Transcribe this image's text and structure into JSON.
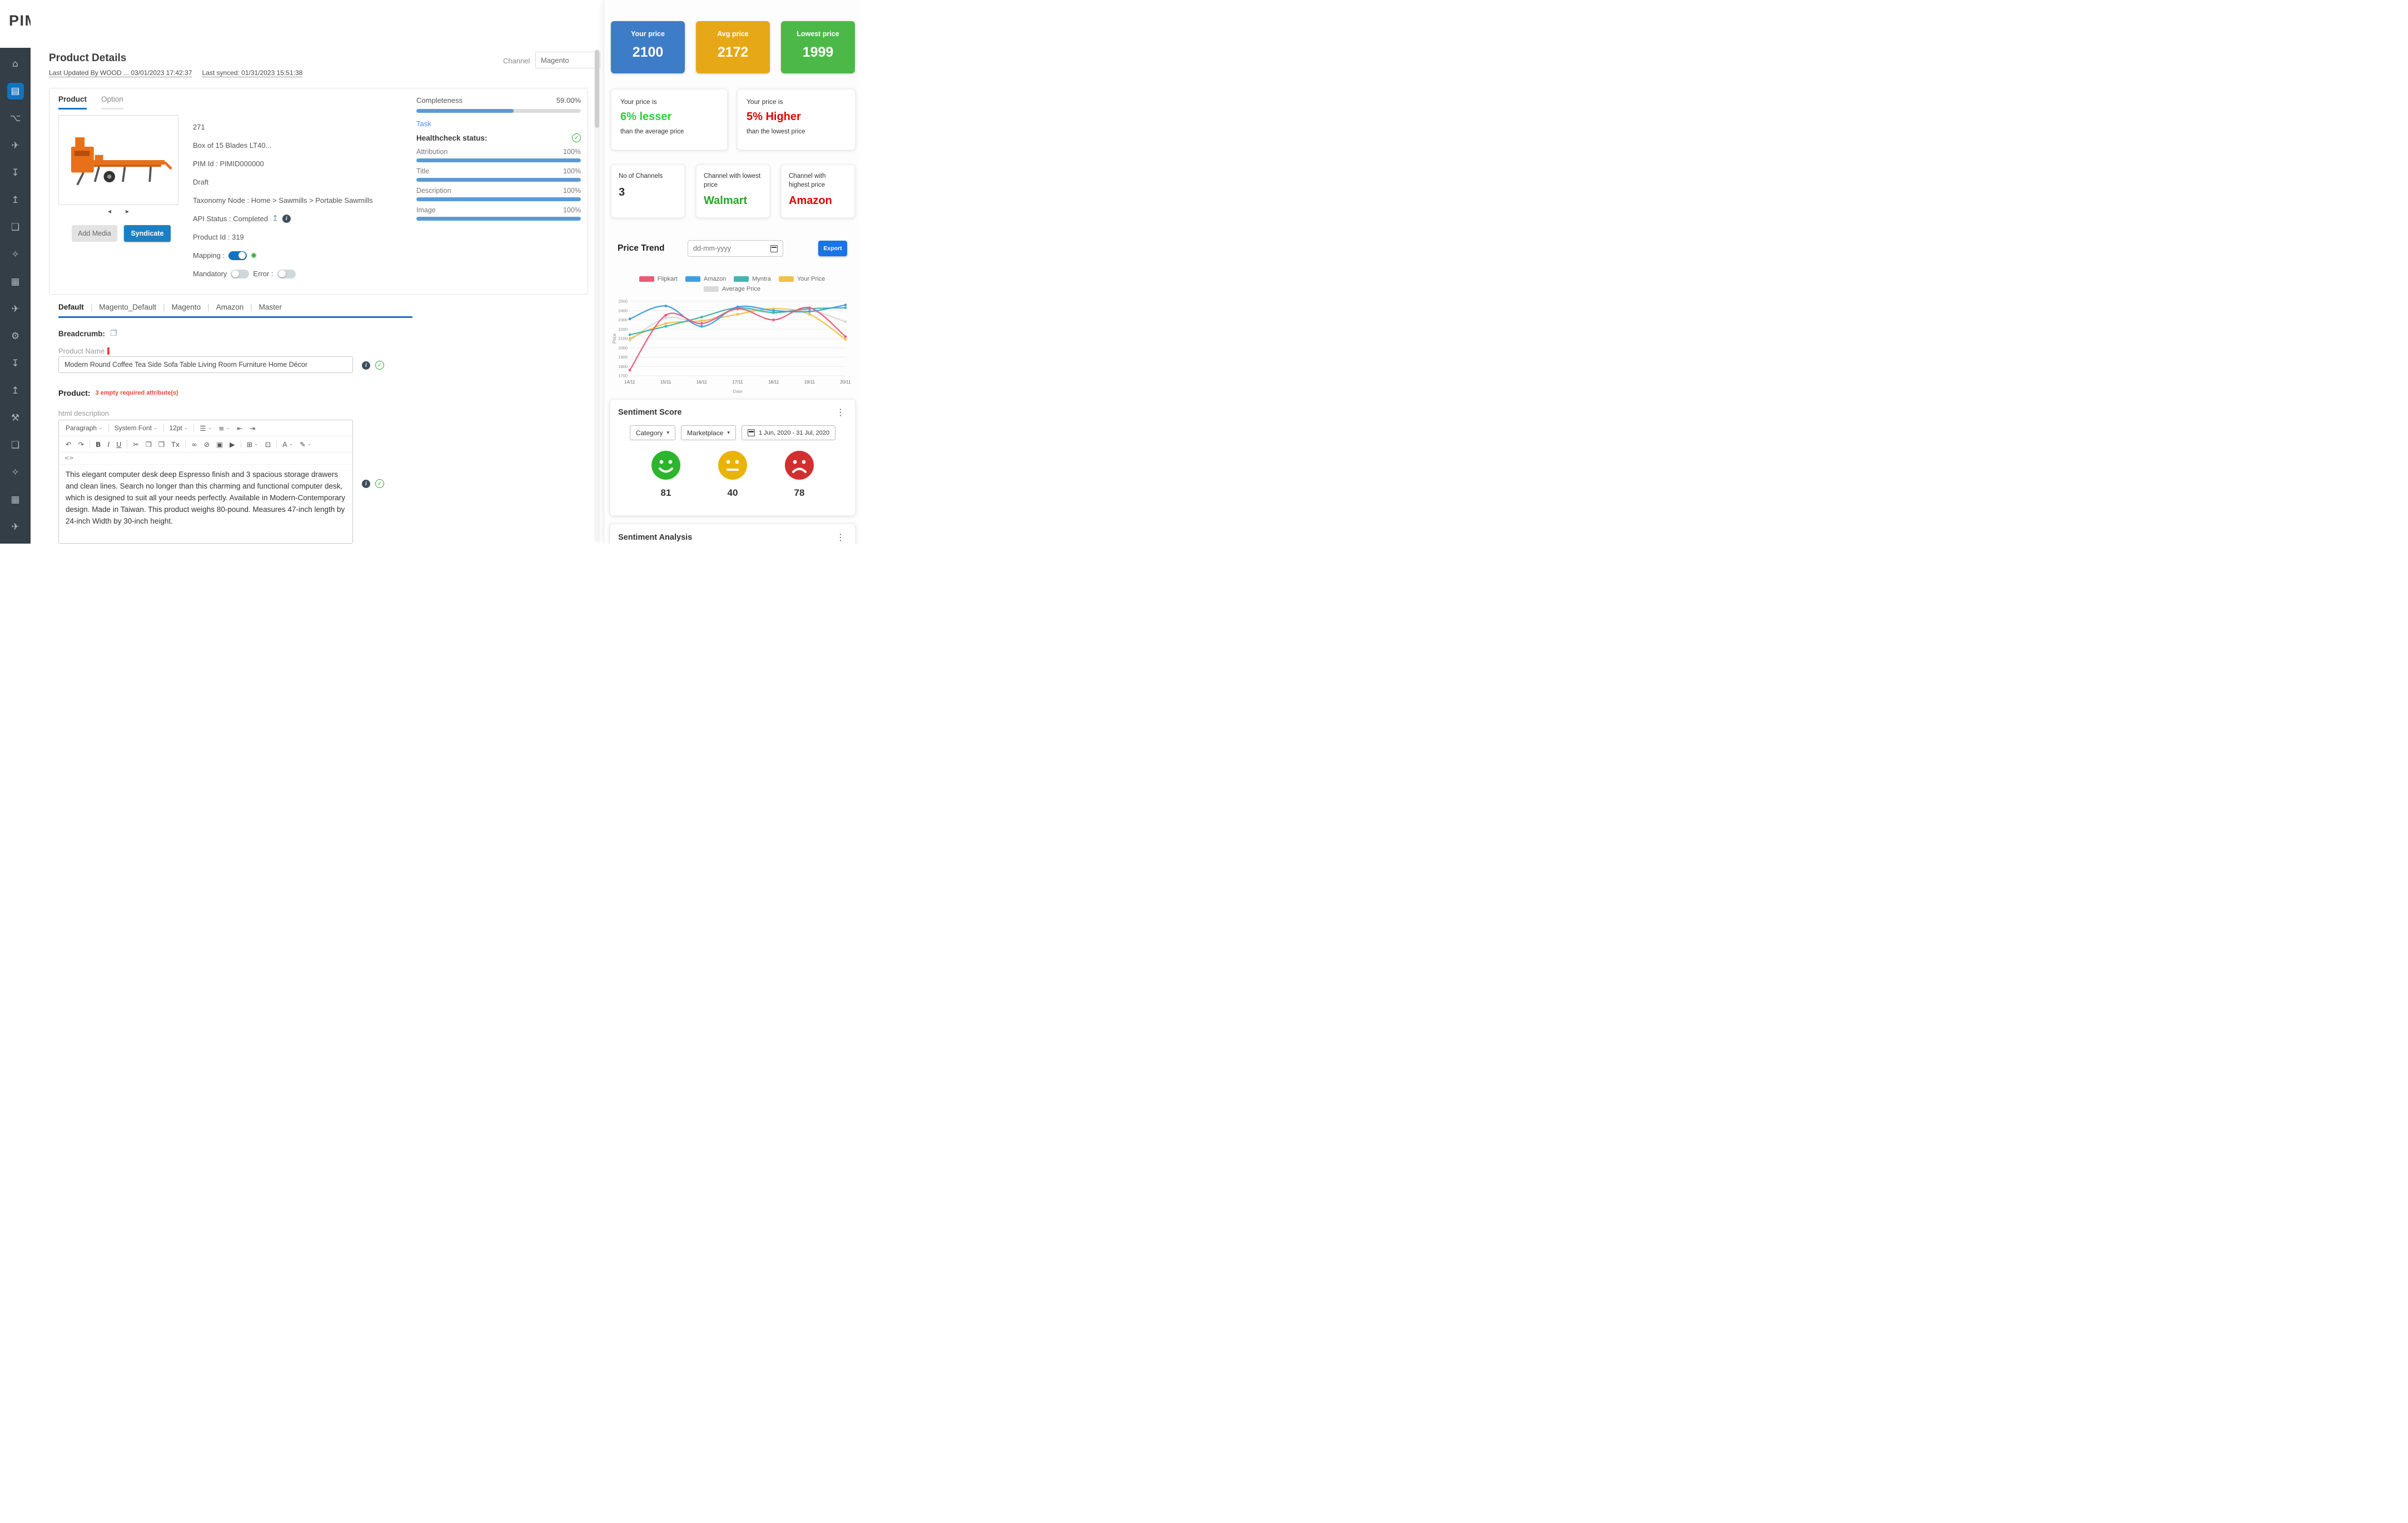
{
  "brand": {
    "prefix": "PIMW",
    "suffix": "RKS"
  },
  "sidebar": {
    "items": [
      {
        "name": "dashboard",
        "icon": "⌂"
      },
      {
        "name": "products",
        "icon": "▤",
        "active": true
      },
      {
        "name": "taxonomy",
        "icon": "⌥"
      },
      {
        "name": "syndication",
        "icon": "✈"
      },
      {
        "name": "import",
        "icon": "↧"
      },
      {
        "name": "export",
        "icon": "↥"
      },
      {
        "name": "bookmarks",
        "icon": "❏"
      },
      {
        "name": "enrichment",
        "icon": "✧"
      },
      {
        "name": "catalog",
        "icon": "▦"
      },
      {
        "name": "channels",
        "icon": "✈"
      },
      {
        "name": "settings",
        "icon": "⚙"
      },
      {
        "name": "import-jobs",
        "icon": "↧"
      },
      {
        "name": "export-jobs",
        "icon": "↥"
      },
      {
        "name": "tools",
        "icon": "⚒"
      },
      {
        "name": "saved-items",
        "icon": "❏"
      },
      {
        "name": "automation",
        "icon": "✧"
      },
      {
        "name": "widgets",
        "icon": "▦"
      },
      {
        "name": "integrations",
        "icon": "✈"
      }
    ]
  },
  "header": {
    "title": "Product Details",
    "last_updated": "Last Updated By  WOOD ...  03/01/2023 17:42:37",
    "last_synced": "Last synced: 01/31/2023 15:51:38",
    "channel_label": "Channel",
    "channel_value": "Magento"
  },
  "product": {
    "tabs": {
      "product": "Product",
      "option": "Option"
    },
    "buttons": {
      "add_media": "Add Media",
      "syndicate": "Syndicate"
    },
    "fields": {
      "sku": "271",
      "title": "Box of 15 Blades LT40...",
      "pim_id": "PIM Id : PIMID000000",
      "status": "Draft",
      "taxonomy": "Taxonomy Node  : Home > Sawmills > Portable Sawmills",
      "api_status": "API Status : Completed",
      "product_id": "Product Id : 319",
      "mapping_label": "Mapping :",
      "mandatory_label": "Mandatory",
      "error_label": "Error :"
    }
  },
  "completeness": {
    "label": "Completeness",
    "value": "59.00%",
    "percent": 59,
    "task_link": "Task",
    "healthcheck_label": "Healthcheck status:",
    "rows": [
      {
        "label": "Attribution",
        "value": "100%",
        "percent": 100
      },
      {
        "label": "Title",
        "value": "100%",
        "percent": 100
      },
      {
        "label": "Description",
        "value": "100%",
        "percent": 100
      },
      {
        "label": "Image",
        "value": "100%",
        "percent": 100
      }
    ]
  },
  "channel_tabs": {
    "items": [
      "Default",
      "Magento_Default",
      "Magento",
      "Amazon",
      "Master"
    ],
    "active": "Default"
  },
  "form": {
    "breadcrumb_label": "Breadcrumb:",
    "product_name_label": "Product Name",
    "product_name_value": "Modern Round Coffee Tea Side Sofa Table Living Room Furniture Home Décor",
    "product_section_label": "Product:",
    "required_warning": "3 empty required attribute(s)",
    "html_description_label": "html description"
  },
  "editor": {
    "toolbar_row1": [
      {
        "name": "paragraph-select",
        "label": "Paragraph",
        "caret": true
      },
      {
        "sep": true
      },
      {
        "name": "font-select",
        "label": "System Font",
        "caret": true
      },
      {
        "sep": true
      },
      {
        "name": "fontsize-select",
        "label": "12pt",
        "caret": true
      },
      {
        "sep": true
      },
      {
        "name": "bullet-list-button",
        "glyph": "☰",
        "caret": true
      },
      {
        "name": "numbered-list-button",
        "glyph": "≡",
        "caret": true
      },
      {
        "name": "outdent-button",
        "glyph": "⇤"
      },
      {
        "name": "indent-button",
        "glyph": "⇥"
      }
    ],
    "toolbar_row2": [
      {
        "name": "undo-button",
        "glyph": "↶"
      },
      {
        "name": "redo-button",
        "glyph": "↷"
      },
      {
        "sep": true
      },
      {
        "name": "bold-button",
        "glyph": "B"
      },
      {
        "name": "italic-button",
        "glyph": "I"
      },
      {
        "name": "underline-button",
        "glyph": "U"
      },
      {
        "sep": true
      },
      {
        "name": "cut-button",
        "glyph": "✂"
      },
      {
        "name": "copy-button",
        "glyph": "❐"
      },
      {
        "name": "paste-button",
        "glyph": "❒"
      },
      {
        "name": "clear-formatting-button",
        "glyph": "Tx"
      },
      {
        "sep": true
      },
      {
        "name": "link-button",
        "glyph": "∞"
      },
      {
        "name": "unlink-button",
        "glyph": "⊘"
      },
      {
        "name": "image-button",
        "glyph": "▣"
      },
      {
        "name": "video-button",
        "glyph": "▶"
      },
      {
        "sep": true
      },
      {
        "name": "table-button",
        "glyph": "⊞",
        "caret": true
      },
      {
        "name": "fullscreen-button",
        "glyph": "⊡"
      },
      {
        "sep": true
      },
      {
        "name": "text-color-button",
        "glyph": "A",
        "caret": true
      },
      {
        "name": "highlight-button",
        "glyph": "✎",
        "caret": true
      }
    ],
    "code_icon": "<>",
    "content": "This elegant computer desk deep Espresso finish and 3 spacious storage drawers and clean lines. Search no longer than this charming and functional computer desk, which is designed to suit all your needs perfectly. Available in Modern-Contemporary design. Made in Taiwan. This product weighs 80-pound. Measures 47-inch length by 24-inch Width by 30-inch height."
  },
  "pricing": {
    "cards": [
      {
        "label": "Your price",
        "value": "2100",
        "color": "#3d7cc7"
      },
      {
        "label": "Avg price",
        "value": "2172",
        "color": "#e6a817"
      },
      {
        "label": "Lowest price",
        "value": "1999",
        "color": "#4cb848"
      }
    ],
    "comparisons": [
      {
        "prefix": "Your price is",
        "highlight": "6% lesser",
        "suffix": "than the average price",
        "color": "#2ecc40"
      },
      {
        "prefix": "Your price is",
        "highlight": "5% Higher",
        "suffix": "than the lowest price",
        "color": "#e60000"
      }
    ],
    "stats": [
      {
        "label": "No of Channels",
        "value": "3",
        "color": "#2b2b2b"
      },
      {
        "label": "Channel with lowest price",
        "value": "Walmart",
        "color": "#27a527"
      },
      {
        "label": "Channel with highest price",
        "value": "Amazon",
        "color": "#e60000"
      }
    ]
  },
  "price_trend": {
    "title": "Price Trend",
    "date_placeholder": "dd-mm-yyyy",
    "export_label": "Export"
  },
  "chart_data": {
    "type": "line",
    "title": "Price Trend",
    "x": [
      "14/11",
      "15/11",
      "16/11",
      "17/11",
      "18/11",
      "19/11",
      "20/11"
    ],
    "xlabel": "Date",
    "ylabel": "Price",
    "ylim": [
      1700,
      2500
    ],
    "yticks": [
      1700,
      1800,
      1900,
      2000,
      2100,
      2200,
      2300,
      2400,
      2500
    ],
    "grid": true,
    "legend_position": "top",
    "series": [
      {
        "name": "Flipkart",
        "color": "#ea5b77",
        "values": [
          1760,
          2350,
          2260,
          2420,
          2300,
          2430,
          2120
        ]
      },
      {
        "name": "Amazon",
        "color": "#3e9fe0",
        "values": [
          2310,
          2450,
          2230,
          2440,
          2400,
          2390,
          2460
        ]
      },
      {
        "name": "Myntra",
        "color": "#44b5ab",
        "values": [
          2140,
          2230,
          2330,
          2430,
          2380,
          2420,
          2430
        ]
      },
      {
        "name": "Your Price",
        "color": "#f0c24b",
        "values": [
          2100,
          2260,
          2290,
          2360,
          2420,
          2360,
          2090
        ]
      },
      {
        "name": "Average Price",
        "color": "#d9d9d9",
        "values": [
          2080,
          2320,
          2280,
          2410,
          2370,
          2400,
          2280
        ]
      }
    ]
  },
  "sentiment": {
    "title": "Sentiment Score",
    "filters": {
      "category": "Category",
      "marketplace": "Marketplace",
      "date_range": "1 Jun, 2020 - 31 Jul, 2020"
    },
    "scores": [
      {
        "label": "positive",
        "value": 81,
        "color": "#2db52d"
      },
      {
        "label": "neutral",
        "value": 40,
        "color": "#eab308"
      },
      {
        "label": "negative",
        "value": 78,
        "color": "#d32f2f"
      }
    ]
  },
  "sentiment_analysis": {
    "title": "Sentiment Analysis"
  }
}
